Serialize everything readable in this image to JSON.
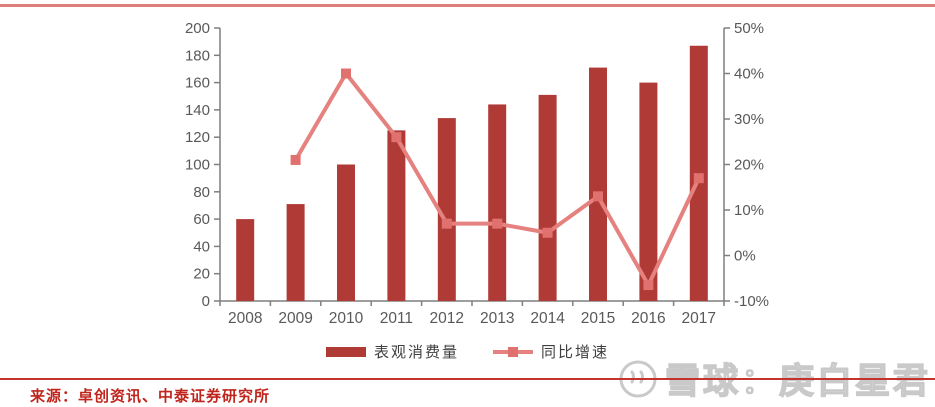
{
  "page": {
    "background": "#ffffff"
  },
  "chart_data": {
    "type": "bar",
    "subtype": "bar-line-combo",
    "categories": [
      "2008",
      "2009",
      "2010",
      "2011",
      "2012",
      "2013",
      "2014",
      "2015",
      "2016",
      "2017"
    ],
    "series": [
      {
        "name": "表观消费量",
        "type": "bar",
        "axis": "left",
        "values": [
          60,
          71,
          100,
          125,
          134,
          144,
          151,
          171,
          160,
          187
        ]
      },
      {
        "name": "同比增速",
        "type": "line",
        "axis": "right",
        "values": [
          null,
          21,
          40,
          26,
          7,
          7,
          5,
          13,
          -6.5,
          17
        ]
      }
    ],
    "left_axis": {
      "min": 0,
      "max": 200,
      "step": 20,
      "tick_labels": [
        "0",
        "20",
        "40",
        "60",
        "80",
        "100",
        "120",
        "140",
        "160",
        "180",
        "200"
      ]
    },
    "right_axis": {
      "min": -10,
      "max": 50,
      "step": 10,
      "tick_labels": [
        "-10%",
        "0%",
        "10%",
        "20%",
        "30%",
        "40%",
        "50%"
      ]
    },
    "title": "",
    "xlabel": "",
    "ylabel": "",
    "grid": false,
    "legend_position": "bottom"
  },
  "legend": {
    "items": [
      {
        "label": "表观消费量",
        "swatch": "bar"
      },
      {
        "label": "同比增速",
        "swatch": "line"
      }
    ]
  },
  "footer": {
    "source": "来源：卓创资讯、中泰证券研究所"
  },
  "watermark": {
    "icon": "xueqiu-logo",
    "text": "雪球：庚白星君"
  },
  "colors": {
    "bar": "#b03a36",
    "line": "#e5817e",
    "marker": "#e0716e",
    "axis": "#7f7f7f",
    "tick_label": "#595959",
    "top_rule": "#dd7e7b",
    "bottom_rule": "#c2342c",
    "source_text": "#c0251d",
    "watermark": "#c9c9c9"
  }
}
